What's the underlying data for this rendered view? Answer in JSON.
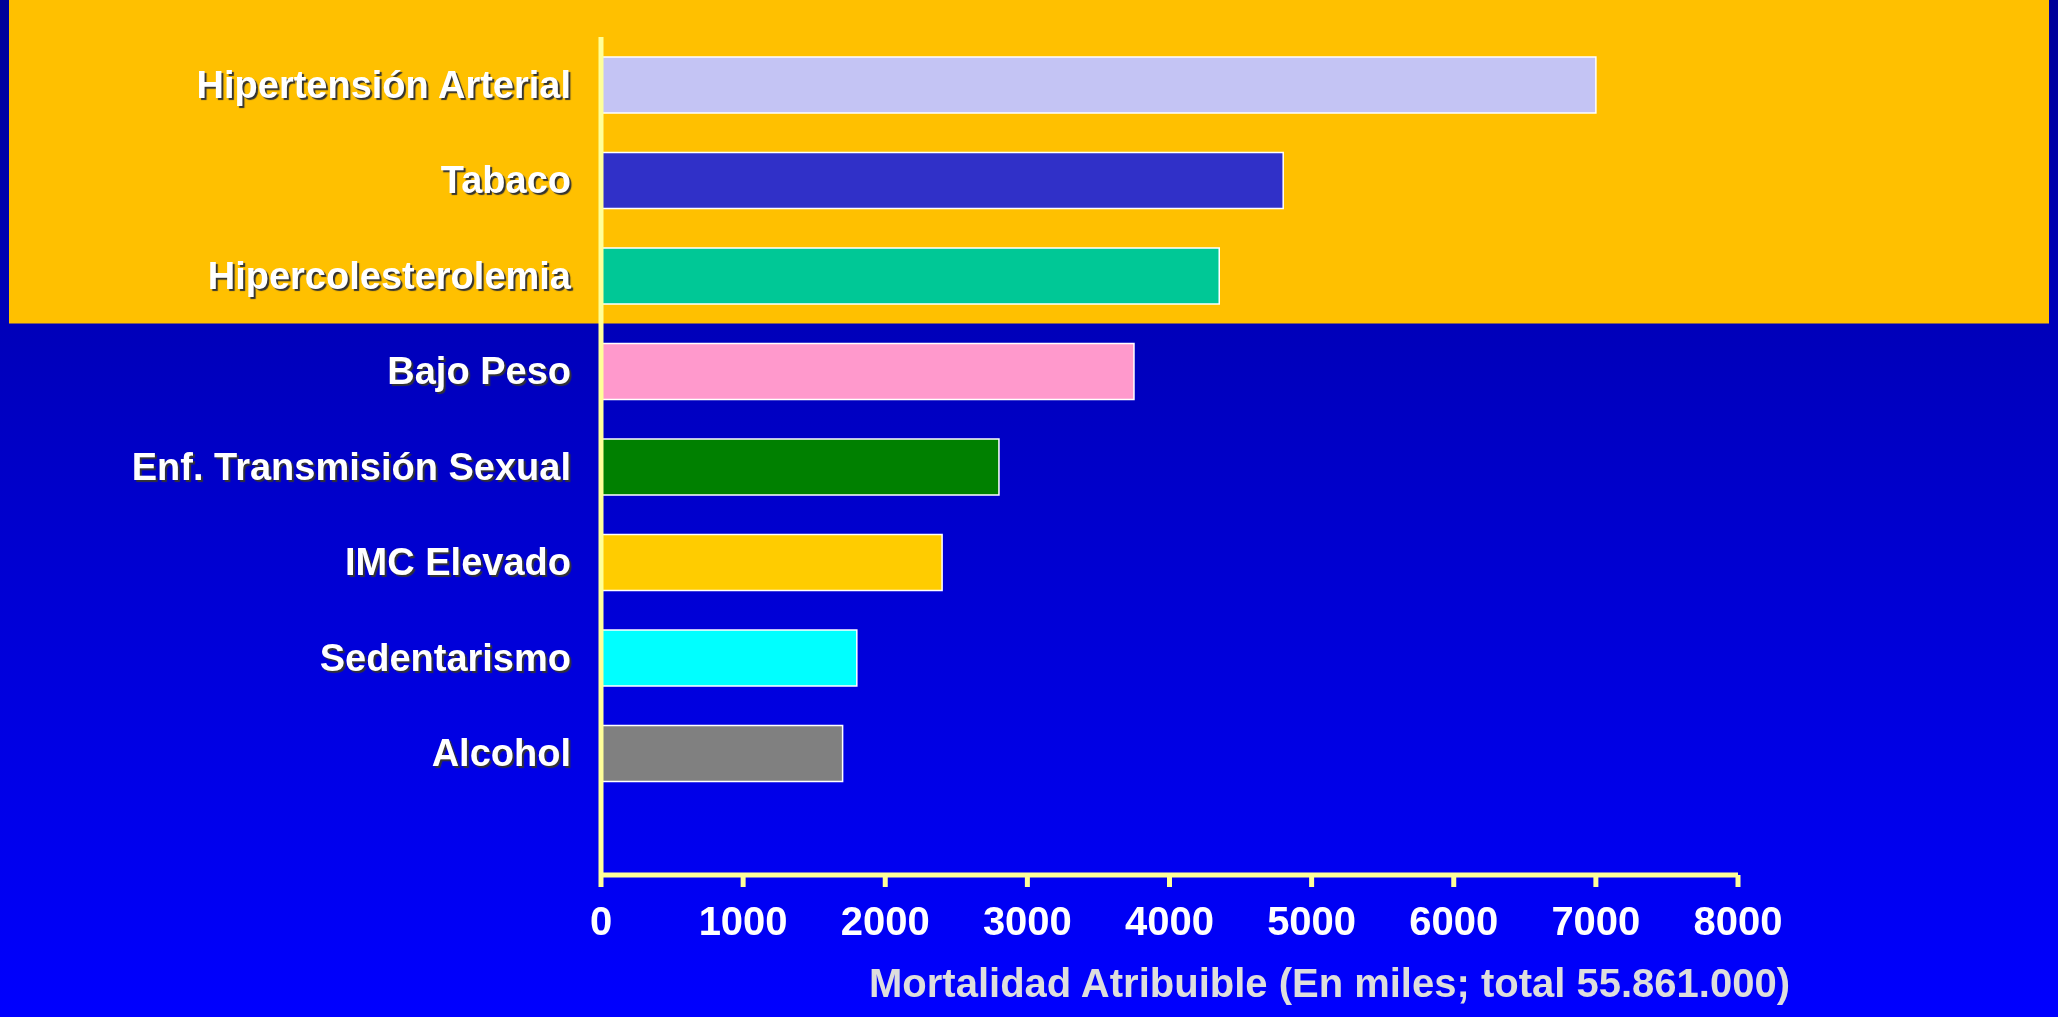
{
  "chart_data": {
    "type": "bar",
    "orientation": "horizontal",
    "xlabel": "Mortalidad Atribuible  (En miles; total 55.861.000)",
    "categories": [
      "Hipertensión Arterial",
      "Tabaco",
      "Hipercolesterolemia",
      "Bajo Peso",
      "Enf. Transmisión Sexual",
      "IMC Elevado",
      "Sedentarismo",
      "Alcohol"
    ],
    "values": [
      7000,
      4800,
      4350,
      3750,
      2800,
      2400,
      1800,
      1700
    ],
    "colors": [
      "#c4c4f4",
      "#3030c8",
      "#00c896",
      "#ff99cc",
      "#008000",
      "#ffcc00",
      "#00ffff",
      "#808080"
    ],
    "xlim": [
      0,
      8000
    ],
    "xticks": [
      0,
      1000,
      2000,
      3000,
      4000,
      5000,
      6000,
      7000,
      8000
    ],
    "grid": false
  }
}
